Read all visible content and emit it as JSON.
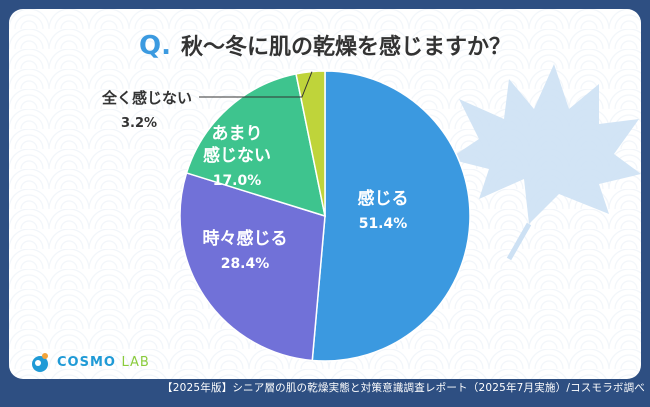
{
  "question": {
    "mark": "Q.",
    "text": "秋〜冬に肌の乾燥を感じますか？"
  },
  "logo": {
    "text": "COSMO",
    "text_lab": "LAB"
  },
  "footer": "【2025年版】シニア層の肌の乾燥実態と対策意識調査レポート（2025年7月実施）/コスモラボ調べ",
  "chart_data": {
    "type": "pie",
    "title": "秋〜冬に肌の乾燥を感じますか？",
    "slices": [
      {
        "label": "感じる",
        "value": 51.4,
        "color": "#3b99e0",
        "label_lines": [
          "感じる"
        ],
        "pct": "51.4%"
      },
      {
        "label": "時々感じる",
        "value": 28.4,
        "color": "#7171d8",
        "label_lines": [
          "時々感じる"
        ],
        "pct": "28.4%"
      },
      {
        "label": "あまり感じない",
        "value": 17.0,
        "color": "#3ec48e",
        "label_lines": [
          "あまり",
          "感じない"
        ],
        "pct": "17.0%"
      },
      {
        "label": "全く感じない",
        "value": 3.2,
        "color": "#bfd43a",
        "label_lines": [
          "全く感じない"
        ],
        "pct": "3.2%"
      }
    ]
  }
}
